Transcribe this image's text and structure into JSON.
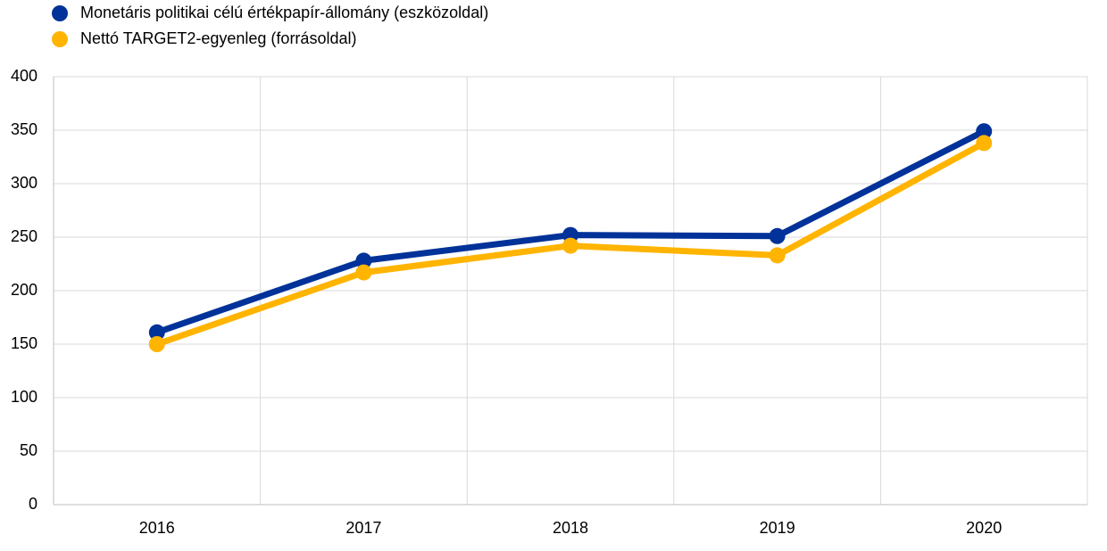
{
  "chart_data": {
    "type": "line",
    "categories": [
      "2016",
      "2017",
      "2018",
      "2019",
      "2020"
    ],
    "series": [
      {
        "name": "Monetáris politikai célú értékpapír-állomány (eszközoldal)",
        "color": "#003299",
        "values": [
          161,
          228,
          252,
          251,
          349
        ]
      },
      {
        "name": "Nettó TARGET2-egyenleg (forrásoldal)",
        "color": "#ffb400",
        "values": [
          150,
          217,
          242,
          233,
          338
        ]
      }
    ],
    "ylim": [
      0,
      400
    ],
    "yticks": [
      0,
      50,
      100,
      150,
      200,
      250,
      300,
      350,
      400
    ],
    "grid": true,
    "legend": "top-left"
  }
}
